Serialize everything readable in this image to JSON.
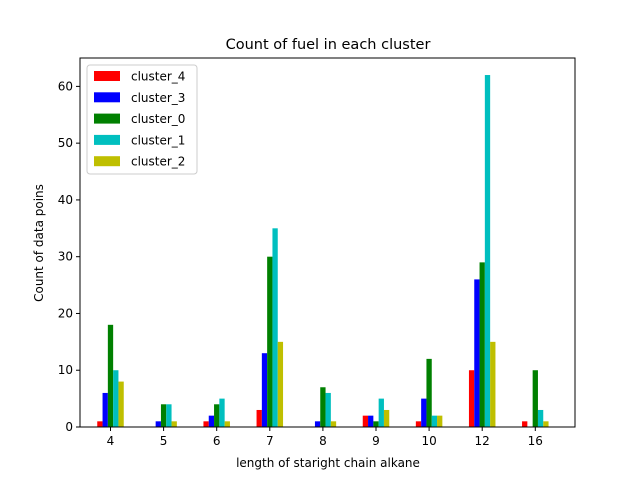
{
  "chart_data": {
    "type": "bar",
    "title": "Count of fuel in each cluster",
    "xlabel": "length of staright chain alkane",
    "ylabel": "Count of data poins",
    "categories": [
      "4",
      "5",
      "6",
      "7",
      "8",
      "9",
      "10",
      "12",
      "16"
    ],
    "ylim": [
      0,
      65
    ],
    "yticks": [
      0,
      10,
      20,
      30,
      40,
      50,
      60
    ],
    "grid": false,
    "legend_position": "top-left",
    "series": [
      {
        "name": "cluster_4",
        "color": "#ff0000",
        "values": [
          1,
          0,
          1,
          3,
          0,
          2,
          1,
          10,
          1
        ]
      },
      {
        "name": "cluster_3",
        "color": "#0000ff",
        "values": [
          6,
          1,
          2,
          13,
          1,
          2,
          5,
          26,
          0
        ]
      },
      {
        "name": "cluster_0",
        "color": "#008000",
        "values": [
          18,
          4,
          4,
          30,
          7,
          1,
          12,
          29,
          10
        ]
      },
      {
        "name": "cluster_1",
        "color": "#00bfbf",
        "values": [
          10,
          4,
          5,
          35,
          6,
          5,
          2,
          62,
          3
        ]
      },
      {
        "name": "cluster_2",
        "color": "#bfbf00",
        "values": [
          8,
          1,
          1,
          15,
          1,
          3,
          2,
          15,
          1
        ]
      }
    ]
  }
}
